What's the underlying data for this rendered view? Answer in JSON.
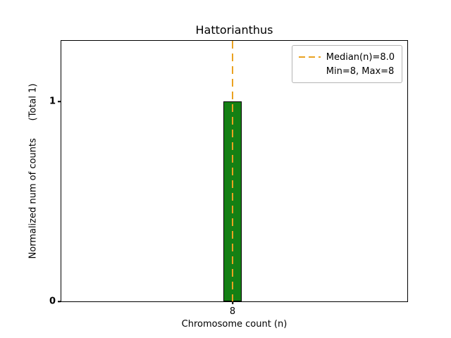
{
  "chart_data": {
    "type": "bar",
    "title": "Hattorianthus",
    "xlabel": "Chromosome count (n)",
    "ylabel": "Normalized num of counts      (Total 1)",
    "categories": [
      "8"
    ],
    "values": [
      1
    ],
    "ylim": [
      0,
      1.305
    ],
    "yticks": [
      0,
      1
    ],
    "ytick_labels": [
      "0",
      "1"
    ],
    "xticks": [
      "8"
    ],
    "grid": false,
    "bar_color": "#148014",
    "bar_edge_color": "#000000",
    "median_line": {
      "x": 8,
      "style": "dashed",
      "color": "#eaa221"
    },
    "legend": {
      "position": "upper right",
      "entries": [
        {
          "label": "Median(n)=8.0",
          "style": "dashed-line",
          "color": "#eaa221"
        },
        {
          "label": "Min=8, Max=8",
          "style": "none"
        }
      ]
    }
  }
}
